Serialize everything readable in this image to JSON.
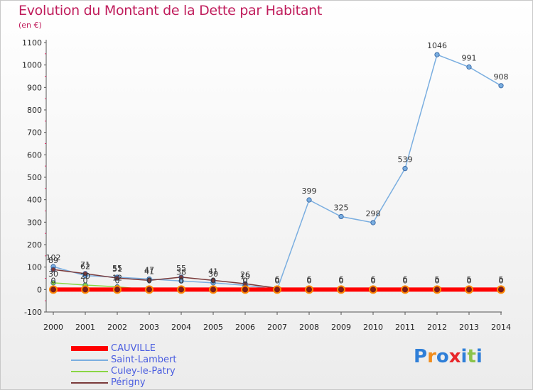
{
  "title": "Evolution du Montant de la Dette par Habitant",
  "subtitle": "(en €)",
  "logo": {
    "text": "Proxiti",
    "letter_colors": [
      "#2f7fd8",
      "#f08c1c",
      "#2f7fd8",
      "#e8262a",
      "#2f7fd8",
      "#8bc34a",
      "#2f7fd8"
    ]
  },
  "chart_data": {
    "type": "line",
    "x": [
      2000,
      2001,
      2002,
      2003,
      2004,
      2005,
      2006,
      2007,
      2008,
      2009,
      2010,
      2011,
      2012,
      2013,
      2014
    ],
    "xlabels": [
      "2000",
      "2001",
      "2002",
      "2003",
      "2004",
      "2005",
      "2006",
      "2007",
      "2008",
      "2009",
      "2010",
      "2011",
      "2012",
      "2013",
      "2014"
    ],
    "ylim": [
      -100,
      1100
    ],
    "yticks": [
      -100,
      0,
      100,
      200,
      300,
      400,
      500,
      600,
      700,
      800,
      900,
      1000,
      1100
    ],
    "yticklabels": [
      "-100",
      "0",
      "100",
      "200",
      "300",
      "400",
      "500",
      "600",
      "700",
      "800",
      "900",
      "1000",
      "1100"
    ],
    "legend_position": "bottom-left",
    "series": [
      {
        "name": "CAUVILLE",
        "color": "#ff0000",
        "values": [
          0,
          0,
          0,
          0,
          0,
          0,
          0,
          0,
          0,
          0,
          0,
          0,
          0,
          0,
          0
        ],
        "labels": [
          "0",
          "0",
          "0",
          "0",
          "0",
          "0",
          "0",
          "0",
          "0",
          "0",
          "0",
          "0",
          "0",
          "0",
          "0"
        ]
      },
      {
        "name": "Saint-Lambert",
        "color": "#7aaee0",
        "values": [
          102,
          62,
          55,
          47,
          38,
          30,
          19,
          0,
          399,
          325,
          298,
          539,
          1046,
          991,
          908
        ],
        "labels": [
          "102",
          "62",
          "55",
          "47",
          "38",
          "30",
          "19",
          "0",
          "399",
          "325",
          "298",
          "539",
          "1046",
          "991",
          "908"
        ]
      },
      {
        "name": "Culey-le-Patry",
        "color": "#8ad644",
        "values": [
          30,
          20,
          12,
          0,
          0,
          0,
          0,
          0,
          0,
          0,
          0,
          0,
          0,
          0,
          0
        ],
        "labels": [
          "30",
          "20",
          "12",
          "0",
          "0",
          "0",
          "0",
          "0",
          "0",
          "0",
          "0",
          "0",
          "0",
          "0",
          "0"
        ]
      },
      {
        "name": "Périgny",
        "color": "#7a3a3a",
        "values": [
          89,
          71,
          51,
          41,
          55,
          41,
          26,
          6,
          6,
          6,
          6,
          6,
          5,
          5,
          5
        ],
        "labels": [
          "89",
          "71",
          "51",
          "41",
          "55",
          "41",
          "26",
          "6",
          "6",
          "6",
          "6",
          "6",
          "5",
          "5",
          "5"
        ]
      }
    ]
  }
}
